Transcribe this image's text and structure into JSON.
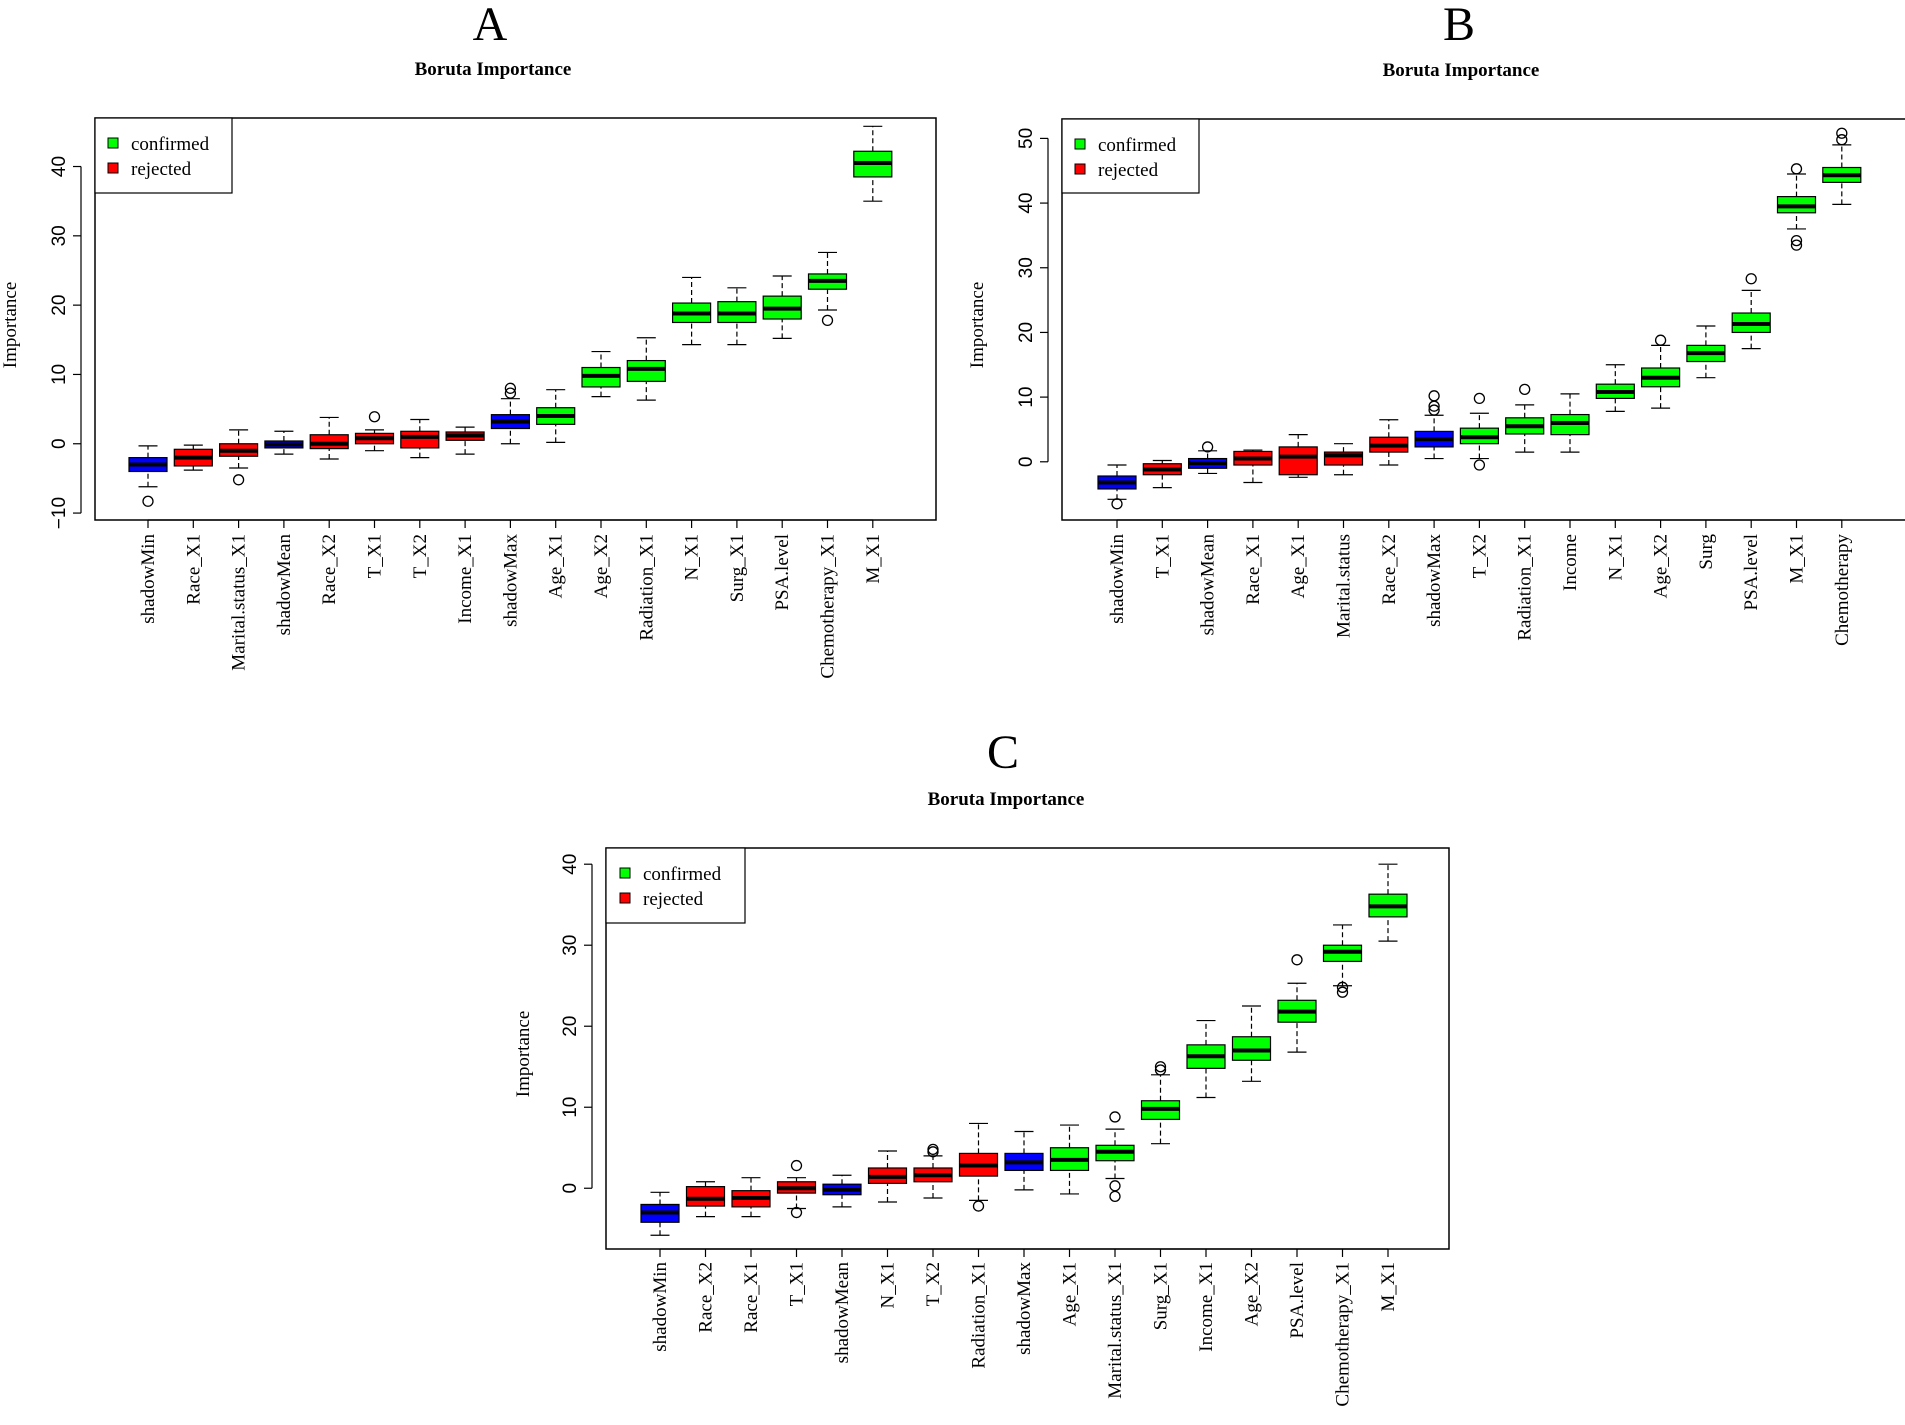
{
  "legend": {
    "confirmed_label": "confirmed",
    "rejected_label": "rejected",
    "colors": {
      "confirmed": "#00ff00",
      "rejected": "#ff0000",
      "shadow": "#0000ff"
    }
  },
  "chart_data": [
    {
      "type": "boxplot",
      "panel": "A",
      "title": "Boruta Importance",
      "ylabel": "Importance",
      "xlabel": "",
      "ylim": [
        -11,
        47
      ],
      "yticks": [
        -10,
        0,
        10,
        20,
        30,
        40
      ],
      "legend_position": "top-left",
      "boxes": [
        {
          "name": "shadowMin",
          "status": "shadow",
          "whisker_low": -6.2,
          "q1": -4.0,
          "median": -3.0,
          "q3": -2.0,
          "whisker_high": -0.3,
          "outliers": [
            -8.3
          ]
        },
        {
          "name": "Race_X1",
          "status": "rejected",
          "whisker_low": -3.8,
          "q1": -3.2,
          "median": -2.0,
          "q3": -0.8,
          "whisker_high": -0.2,
          "outliers": []
        },
        {
          "name": "Marital.status_X1",
          "status": "rejected",
          "whisker_low": -3.5,
          "q1": -1.8,
          "median": -1.0,
          "q3": 0.0,
          "whisker_high": 2.0,
          "outliers": [
            -5.2
          ]
        },
        {
          "name": "shadowMean",
          "status": "shadow",
          "whisker_low": -1.5,
          "q1": -0.6,
          "median": -0.1,
          "q3": 0.4,
          "whisker_high": 1.8,
          "outliers": []
        },
        {
          "name": "Race_X2",
          "status": "rejected",
          "whisker_low": -2.2,
          "q1": -0.7,
          "median": 0.0,
          "q3": 1.3,
          "whisker_high": 3.8,
          "outliers": []
        },
        {
          "name": "T_X1",
          "status": "rejected",
          "whisker_low": -1.0,
          "q1": 0.0,
          "median": 0.8,
          "q3": 1.5,
          "whisker_high": 2.0,
          "outliers": [
            3.9
          ]
        },
        {
          "name": "T_X2",
          "status": "rejected",
          "whisker_low": -2.0,
          "q1": -0.6,
          "median": 1.0,
          "q3": 1.8,
          "whisker_high": 3.5,
          "outliers": []
        },
        {
          "name": "Income_X1",
          "status": "rejected",
          "whisker_low": -1.5,
          "q1": 0.5,
          "median": 1.2,
          "q3": 1.7,
          "whisker_high": 2.4,
          "outliers": []
        },
        {
          "name": "shadowMax",
          "status": "shadow",
          "whisker_low": 0.0,
          "q1": 2.2,
          "median": 3.2,
          "q3": 4.2,
          "whisker_high": 6.5,
          "outliers": [
            7.3,
            8.0
          ]
        },
        {
          "name": "Age_X1",
          "status": "confirmed",
          "whisker_low": 0.2,
          "q1": 2.8,
          "median": 4.0,
          "q3": 5.2,
          "whisker_high": 7.8,
          "outliers": []
        },
        {
          "name": "Age_X2",
          "status": "confirmed",
          "whisker_low": 6.8,
          "q1": 8.2,
          "median": 9.8,
          "q3": 11.0,
          "whisker_high": 13.3,
          "outliers": []
        },
        {
          "name": "Radiation_X1",
          "status": "confirmed",
          "whisker_low": 6.3,
          "q1": 9.0,
          "median": 10.8,
          "q3": 12.0,
          "whisker_high": 15.3,
          "outliers": []
        },
        {
          "name": "N_X1",
          "status": "confirmed",
          "whisker_low": 14.3,
          "q1": 17.5,
          "median": 18.8,
          "q3": 20.3,
          "whisker_high": 24.0,
          "outliers": []
        },
        {
          "name": "Surg_X1",
          "status": "confirmed",
          "whisker_low": 14.3,
          "q1": 17.5,
          "median": 18.8,
          "q3": 20.5,
          "whisker_high": 22.5,
          "outliers": []
        },
        {
          "name": "PSA.level",
          "status": "confirmed",
          "whisker_low": 15.2,
          "q1": 18.0,
          "median": 19.5,
          "q3": 21.3,
          "whisker_high": 24.2,
          "outliers": []
        },
        {
          "name": "Chemotherapy_X1",
          "status": "confirmed",
          "whisker_low": 19.3,
          "q1": 22.3,
          "median": 23.5,
          "q3": 24.5,
          "whisker_high": 27.6,
          "outliers": [
            17.8
          ]
        },
        {
          "name": "M_X1",
          "status": "confirmed",
          "whisker_low": 35.0,
          "q1": 38.5,
          "median": 40.5,
          "q3": 42.2,
          "whisker_high": 45.8,
          "outliers": []
        }
      ]
    },
    {
      "type": "boxplot",
      "panel": "B",
      "title": "Boruta Importance",
      "ylabel": "Importance",
      "xlabel": "",
      "ylim": [
        -9,
        53
      ],
      "yticks": [
        0,
        10,
        20,
        30,
        40,
        50
      ],
      "legend_position": "top-left",
      "boxes": [
        {
          "name": "shadowMin",
          "status": "shadow",
          "whisker_low": -5.8,
          "q1": -4.2,
          "median": -3.2,
          "q3": -2.2,
          "whisker_high": -0.5,
          "outliers": [
            -6.5
          ]
        },
        {
          "name": "T_X1",
          "status": "rejected",
          "whisker_low": -4.0,
          "q1": -2.0,
          "median": -1.2,
          "q3": -0.3,
          "whisker_high": 0.2,
          "outliers": []
        },
        {
          "name": "shadowMean",
          "status": "shadow",
          "whisker_low": -1.8,
          "q1": -1.0,
          "median": -0.2,
          "q3": 0.5,
          "whisker_high": 1.7,
          "outliers": [
            2.3
          ]
        },
        {
          "name": "Race_X1",
          "status": "rejected",
          "whisker_low": -3.2,
          "q1": -0.5,
          "median": 0.5,
          "q3": 1.6,
          "whisker_high": 1.8,
          "outliers": []
        },
        {
          "name": "Age_X1",
          "status": "rejected",
          "whisker_low": -2.4,
          "q1": -2.0,
          "median": 0.8,
          "q3": 2.3,
          "whisker_high": 4.2,
          "outliers": []
        },
        {
          "name": "Marital.status",
          "status": "rejected",
          "whisker_low": -2.0,
          "q1": -0.5,
          "median": 1.0,
          "q3": 1.5,
          "whisker_high": 2.8,
          "outliers": []
        },
        {
          "name": "Race_X2",
          "status": "rejected",
          "whisker_low": -0.5,
          "q1": 1.5,
          "median": 2.5,
          "q3": 3.8,
          "whisker_high": 6.5,
          "outliers": []
        },
        {
          "name": "shadowMax",
          "status": "shadow",
          "whisker_low": 0.5,
          "q1": 2.3,
          "median": 3.5,
          "q3": 4.7,
          "whisker_high": 7.2,
          "outliers": [
            8.0,
            8.6,
            10.2
          ]
        },
        {
          "name": "T_X2",
          "status": "confirmed",
          "whisker_low": 0.5,
          "q1": 2.8,
          "median": 3.8,
          "q3": 5.2,
          "whisker_high": 7.5,
          "outliers": [
            -0.5,
            9.8
          ]
        },
        {
          "name": "Radiation_X1",
          "status": "confirmed",
          "whisker_low": 1.5,
          "q1": 4.3,
          "median": 5.5,
          "q3": 6.8,
          "whisker_high": 8.8,
          "outliers": [
            11.2
          ]
        },
        {
          "name": "Income",
          "status": "confirmed",
          "whisker_low": 1.5,
          "q1": 4.2,
          "median": 6.0,
          "q3": 7.3,
          "whisker_high": 10.5,
          "outliers": []
        },
        {
          "name": "N_X1",
          "status": "confirmed",
          "whisker_low": 7.8,
          "q1": 9.8,
          "median": 10.8,
          "q3": 12.0,
          "whisker_high": 15.0,
          "outliers": []
        },
        {
          "name": "Age_X2",
          "status": "confirmed",
          "whisker_low": 8.3,
          "q1": 11.6,
          "median": 13.0,
          "q3": 14.5,
          "whisker_high": 18.0,
          "outliers": [
            18.8
          ]
        },
        {
          "name": "Surg",
          "status": "confirmed",
          "whisker_low": 13.0,
          "q1": 15.5,
          "median": 16.8,
          "q3": 18.0,
          "whisker_high": 21.0,
          "outliers": []
        },
        {
          "name": "PSA.level",
          "status": "confirmed",
          "whisker_low": 17.5,
          "q1": 20.0,
          "median": 21.3,
          "q3": 23.0,
          "whisker_high": 26.5,
          "outliers": [
            28.3
          ]
        },
        {
          "name": "M_X1",
          "status": "confirmed",
          "whisker_low": 36.0,
          "q1": 38.5,
          "median": 39.5,
          "q3": 41.0,
          "whisker_high": 44.5,
          "outliers": [
            33.5,
            34.2,
            45.3
          ]
        },
        {
          "name": "Chemotherapy",
          "status": "confirmed",
          "whisker_low": 39.8,
          "q1": 43.2,
          "median": 44.3,
          "q3": 45.5,
          "whisker_high": 49.0,
          "outliers": [
            49.8,
            50.8
          ]
        }
      ]
    },
    {
      "type": "boxplot",
      "panel": "C",
      "title": "Boruta Importance",
      "ylabel": "Importance",
      "xlabel": "",
      "ylim": [
        -7.5,
        42
      ],
      "yticks": [
        0,
        10,
        20,
        30,
        40
      ],
      "legend_position": "top-left",
      "boxes": [
        {
          "name": "shadowMin",
          "status": "shadow",
          "whisker_low": -5.8,
          "q1": -4.2,
          "median": -3.0,
          "q3": -2.0,
          "whisker_high": -0.5,
          "outliers": []
        },
        {
          "name": "Race_X2",
          "status": "rejected",
          "whisker_low": -3.5,
          "q1": -2.2,
          "median": -1.3,
          "q3": 0.2,
          "whisker_high": 0.8,
          "outliers": []
        },
        {
          "name": "Race_X1",
          "status": "rejected",
          "whisker_low": -3.5,
          "q1": -2.3,
          "median": -1.2,
          "q3": -0.3,
          "whisker_high": 1.3,
          "outliers": []
        },
        {
          "name": "T_X1",
          "status": "rejected",
          "whisker_low": -2.5,
          "q1": -0.6,
          "median": 0.0,
          "q3": 0.8,
          "whisker_high": 1.3,
          "outliers": [
            -3.0,
            2.8
          ]
        },
        {
          "name": "shadowMean",
          "status": "shadow",
          "whisker_low": -2.3,
          "q1": -0.8,
          "median": -0.2,
          "q3": 0.5,
          "whisker_high": 1.6,
          "outliers": []
        },
        {
          "name": "N_X1",
          "status": "rejected",
          "whisker_low": -1.7,
          "q1": 0.6,
          "median": 1.4,
          "q3": 2.5,
          "whisker_high": 4.6,
          "outliers": []
        },
        {
          "name": "T_X2",
          "status": "rejected",
          "whisker_low": -1.2,
          "q1": 0.8,
          "median": 1.6,
          "q3": 2.5,
          "whisker_high": 4.0,
          "outliers": [
            4.5,
            4.8
          ]
        },
        {
          "name": "Radiation_X1",
          "status": "rejected",
          "whisker_low": -1.5,
          "q1": 1.5,
          "median": 2.8,
          "q3": 4.3,
          "whisker_high": 8.0,
          "outliers": [
            -2.2
          ]
        },
        {
          "name": "shadowMax",
          "status": "shadow",
          "whisker_low": -0.2,
          "q1": 2.2,
          "median": 3.2,
          "q3": 4.3,
          "whisker_high": 7.0,
          "outliers": []
        },
        {
          "name": "Age_X1",
          "status": "confirmed",
          "whisker_low": -0.7,
          "q1": 2.2,
          "median": 3.5,
          "q3": 5.0,
          "whisker_high": 7.8,
          "outliers": []
        },
        {
          "name": "Marital.status_X1",
          "status": "confirmed",
          "whisker_low": 1.2,
          "q1": 3.4,
          "median": 4.5,
          "q3": 5.3,
          "whisker_high": 7.3,
          "outliers": [
            -1.0,
            0.3,
            8.8
          ]
        },
        {
          "name": "Surg_X1",
          "status": "confirmed",
          "whisker_low": 5.5,
          "q1": 8.5,
          "median": 9.8,
          "q3": 10.8,
          "whisker_high": 14.0,
          "outliers": [
            14.6,
            15.0
          ]
        },
        {
          "name": "Income_X1",
          "status": "confirmed",
          "whisker_low": 11.2,
          "q1": 14.8,
          "median": 16.3,
          "q3": 17.7,
          "whisker_high": 20.7,
          "outliers": []
        },
        {
          "name": "Age_X2",
          "status": "confirmed",
          "whisker_low": 13.2,
          "q1": 15.8,
          "median": 17.0,
          "q3": 18.7,
          "whisker_high": 22.5,
          "outliers": []
        },
        {
          "name": "PSA.level",
          "status": "confirmed",
          "whisker_low": 16.8,
          "q1": 20.5,
          "median": 21.8,
          "q3": 23.2,
          "whisker_high": 25.3,
          "outliers": [
            28.2
          ]
        },
        {
          "name": "Chemotherapy_X1",
          "status": "confirmed",
          "whisker_low": 25.0,
          "q1": 28.0,
          "median": 29.2,
          "q3": 30.0,
          "whisker_high": 32.5,
          "outliers": [
            24.2,
            24.8
          ]
        },
        {
          "name": "M_X1",
          "status": "confirmed",
          "whisker_low": 30.5,
          "q1": 33.5,
          "median": 34.8,
          "q3": 36.3,
          "whisker_high": 40.0,
          "outliers": []
        }
      ]
    }
  ]
}
